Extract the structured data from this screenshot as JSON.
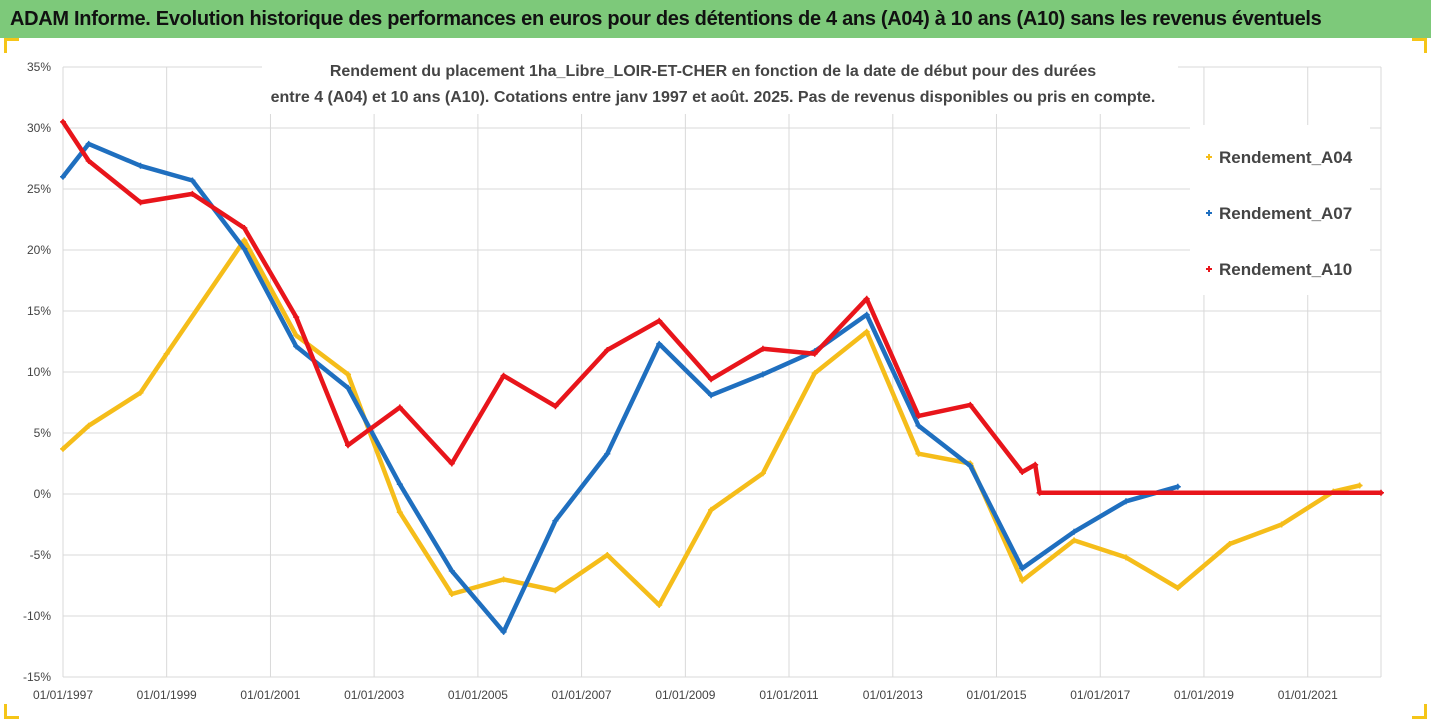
{
  "banner": {
    "title": "ADAM Informe. Evolution historique des performances en euros pour des détentions de 4 ans (A04) à 10 ans (A10) sans les revenus éventuels",
    "color": "#7dc97a"
  },
  "chart_data": {
    "type": "line",
    "title_lines": [
      "Rendement du placement 1ha_Libre_LOIR-ET-CHER en fonction de la date de début pour des durées",
      "entre 4 (A04) et 10 ans (A10). Cotations entre janv 1997 et août. 2025. Pas de revenus disponibles ou pris en compte."
    ],
    "xlabel": "",
    "ylabel": "",
    "x_range": [
      "1997-01-01",
      "2022-06-01"
    ],
    "x_ticks": [
      "01/01/1997",
      "01/01/1999",
      "01/01/2001",
      "01/01/2003",
      "01/01/2005",
      "01/01/2007",
      "01/01/2009",
      "01/01/2011",
      "01/01/2013",
      "01/01/2015",
      "01/01/2017",
      "01/01/2019",
      "01/01/2021"
    ],
    "x_tick_dates": [
      "1997-01-01",
      "1999-01-01",
      "2001-01-01",
      "2003-01-01",
      "2005-01-01",
      "2007-01-01",
      "2009-01-01",
      "2011-01-01",
      "2013-01-01",
      "2015-01-01",
      "2017-01-01",
      "2019-01-01",
      "2021-01-01"
    ],
    "ylim": [
      -15,
      35
    ],
    "y_ticks": [
      -15,
      -10,
      -5,
      0,
      5,
      10,
      15,
      20,
      25,
      30,
      35
    ],
    "y_tick_labels": [
      "-15%",
      "-10%",
      "-5%",
      "0%",
      "5%",
      "10%",
      "15%",
      "20%",
      "25%",
      "30%",
      "35%"
    ],
    "grid": true,
    "legend_position": "right",
    "series": [
      {
        "name": "Rendement_A04",
        "color": "#f5bd1a",
        "points": [
          [
            "1997-01-01",
            3.7
          ],
          [
            "1997-07-01",
            5.6
          ],
          [
            "1998-07-01",
            8.3
          ],
          [
            "1999-01-01",
            11.5
          ],
          [
            "2000-07-01",
            20.8
          ],
          [
            "2001-07-01",
            13.0
          ],
          [
            "2002-07-01",
            9.8
          ],
          [
            "2003-07-01",
            -1.5
          ],
          [
            "2004-07-01",
            -8.2
          ],
          [
            "2005-07-01",
            -7.0
          ],
          [
            "2006-07-01",
            -7.9
          ],
          [
            "2007-07-01",
            -5.0
          ],
          [
            "2008-07-01",
            -9.1
          ],
          [
            "2009-07-01",
            -1.3
          ],
          [
            "2010-07-01",
            1.7
          ],
          [
            "2011-07-01",
            9.9
          ],
          [
            "2012-07-01",
            13.3
          ],
          [
            "2013-07-01",
            3.3
          ],
          [
            "2014-07-01",
            2.5
          ],
          [
            "2015-07-01",
            -7.1
          ],
          [
            "2016-07-01",
            -3.8
          ],
          [
            "2017-07-01",
            -5.2
          ],
          [
            "2018-07-01",
            -7.7
          ],
          [
            "2019-07-01",
            -4.1
          ],
          [
            "2020-07-01",
            -2.5
          ],
          [
            "2021-07-01",
            0.2
          ],
          [
            "2022-01-01",
            0.7
          ]
        ]
      },
      {
        "name": "Rendement_A07",
        "color": "#1f6fbf",
        "points": [
          [
            "1997-01-01",
            26.0
          ],
          [
            "1997-07-01",
            28.7
          ],
          [
            "1998-07-01",
            26.9
          ],
          [
            "1999-07-01",
            25.7
          ],
          [
            "2000-07-01",
            20.1
          ],
          [
            "2001-07-01",
            12.1
          ],
          [
            "2002-07-01",
            8.7
          ],
          [
            "2003-07-01",
            0.8
          ],
          [
            "2004-07-01",
            -6.3
          ],
          [
            "2005-07-01",
            -11.3
          ],
          [
            "2006-07-01",
            -2.2
          ],
          [
            "2007-07-01",
            3.3
          ],
          [
            "2008-07-01",
            12.3
          ],
          [
            "2009-07-01",
            8.1
          ],
          [
            "2010-07-01",
            9.8
          ],
          [
            "2011-07-01",
            11.7
          ],
          [
            "2012-07-01",
            14.7
          ],
          [
            "2013-07-01",
            5.6
          ],
          [
            "2014-07-01",
            2.3
          ],
          [
            "2015-07-01",
            -6.1
          ],
          [
            "2016-07-01",
            -3.1
          ],
          [
            "2017-07-01",
            -0.6
          ],
          [
            "2018-07-01",
            0.6
          ]
        ]
      },
      {
        "name": "Rendement_A10",
        "color": "#e8151b",
        "points": [
          [
            "1997-01-01",
            30.5
          ],
          [
            "1997-07-01",
            27.3
          ],
          [
            "1998-07-01",
            23.9
          ],
          [
            "1999-07-01",
            24.6
          ],
          [
            "2000-07-01",
            21.8
          ],
          [
            "2001-07-01",
            14.5
          ],
          [
            "2002-07-01",
            4.0
          ],
          [
            "2003-07-01",
            7.1
          ],
          [
            "2004-07-01",
            2.5
          ],
          [
            "2005-07-01",
            9.7
          ],
          [
            "2006-07-01",
            7.2
          ],
          [
            "2007-07-01",
            11.8
          ],
          [
            "2008-07-01",
            14.2
          ],
          [
            "2009-07-01",
            9.4
          ],
          [
            "2010-07-01",
            11.9
          ],
          [
            "2011-07-01",
            11.5
          ],
          [
            "2012-07-01",
            16.0
          ],
          [
            "2013-07-01",
            6.4
          ],
          [
            "2014-07-01",
            7.3
          ],
          [
            "2015-07-01",
            1.8
          ],
          [
            "2015-10-01",
            2.4
          ],
          [
            "2015-11-01",
            0.1
          ],
          [
            "2022-06-01",
            0.1
          ]
        ]
      }
    ]
  }
}
